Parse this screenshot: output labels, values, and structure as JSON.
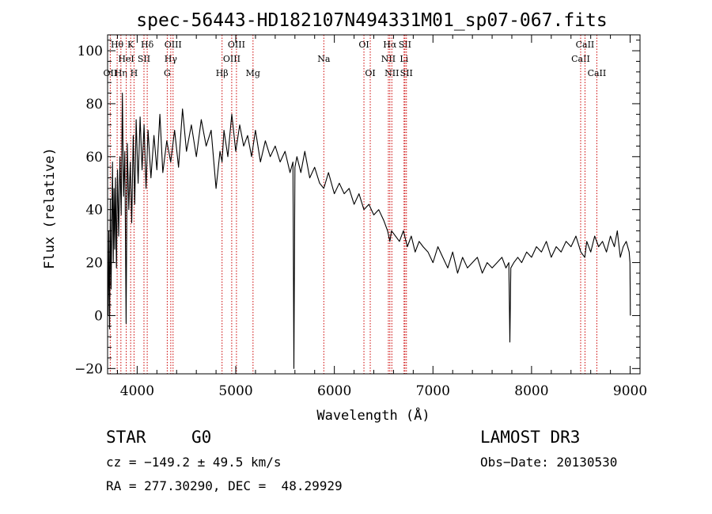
{
  "chart_data": {
    "type": "line",
    "title": "spec-56443-HD182107N494331M01_sp07-067.fits",
    "xlabel": "Wavelength (Å)",
    "ylabel": "Flux (relative)",
    "xlim": [
      3700,
      9100
    ],
    "ylim": [
      -22,
      106
    ],
    "x_ticks": [
      4000,
      5000,
      6000,
      7000,
      8000,
      9000
    ],
    "y_ticks": [
      -20,
      0,
      20,
      40,
      60,
      80,
      100
    ],
    "series": [
      {
        "name": "spectrum",
        "x": [
          3705,
          3712,
          3720,
          3728,
          3735,
          3742,
          3750,
          3758,
          3765,
          3772,
          3780,
          3790,
          3800,
          3812,
          3825,
          3838,
          3850,
          3862,
          3875,
          3888,
          3900,
          3915,
          3930,
          3945,
          3960,
          3975,
          3990,
          4010,
          4030,
          4050,
          4070,
          4090,
          4110,
          4140,
          4170,
          4200,
          4230,
          4260,
          4300,
          4340,
          4380,
          4420,
          4460,
          4500,
          4550,
          4600,
          4650,
          4700,
          4750,
          4800,
          4840,
          4861,
          4880,
          4920,
          4960,
          5000,
          5040,
          5080,
          5120,
          5160,
          5200,
          5250,
          5300,
          5350,
          5400,
          5450,
          5500,
          5550,
          5580,
          5590,
          5600,
          5620,
          5660,
          5700,
          5750,
          5800,
          5850,
          5893,
          5940,
          6000,
          6050,
          6100,
          6150,
          6200,
          6250,
          6300,
          6350,
          6400,
          6450,
          6500,
          6540,
          6563,
          6580,
          6620,
          6660,
          6700,
          6740,
          6780,
          6820,
          6860,
          6900,
          6950,
          7000,
          7050,
          7100,
          7150,
          7200,
          7250,
          7300,
          7350,
          7400,
          7450,
          7500,
          7550,
          7600,
          7650,
          7700,
          7740,
          7770,
          7780,
          7790,
          7820,
          7860,
          7900,
          7950,
          8000,
          8050,
          8100,
          8150,
          8200,
          8250,
          8300,
          8350,
          8400,
          8450,
          8500,
          8540,
          8560,
          8600,
          8640,
          8680,
          8720,
          8760,
          8800,
          8840,
          8870,
          8900,
          8930,
          8960,
          8990,
          8998,
          9002
        ],
        "y": [
          0,
          32,
          -5,
          44,
          10,
          30,
          58,
          20,
          48,
          25,
          52,
          18,
          55,
          30,
          60,
          38,
          84,
          45,
          62,
          -3,
          65,
          40,
          58,
          35,
          68,
          42,
          74,
          50,
          75,
          55,
          72,
          48,
          70,
          52,
          68,
          55,
          76,
          54,
          66,
          58,
          70,
          56,
          78,
          62,
          72,
          60,
          74,
          64,
          70,
          48,
          62,
          58,
          70,
          60,
          76,
          62,
          72,
          64,
          68,
          60,
          70,
          58,
          66,
          60,
          64,
          58,
          62,
          54,
          58,
          -20,
          56,
          60,
          54,
          62,
          52,
          56,
          50,
          48,
          54,
          46,
          50,
          46,
          48,
          42,
          46,
          40,
          42,
          38,
          40,
          36,
          32,
          28,
          32,
          30,
          28,
          32,
          26,
          30,
          24,
          28,
          26,
          24,
          20,
          26,
          22,
          18,
          24,
          16,
          22,
          18,
          20,
          22,
          16,
          20,
          18,
          20,
          22,
          18,
          20,
          -10,
          18,
          20,
          22,
          20,
          24,
          22,
          26,
          24,
          28,
          22,
          26,
          24,
          28,
          26,
          30,
          24,
          22,
          28,
          24,
          30,
          26,
          28,
          24,
          30,
          26,
          32,
          22,
          26,
          28,
          24,
          20,
          0
        ]
      }
    ],
    "spectral_lines": [
      {
        "label": "OII",
        "wave": 3727,
        "row": 3
      },
      {
        "label": "Hθ",
        "wave": 3797,
        "row": 1
      },
      {
        "label": "Hη",
        "wave": 3835,
        "row": 3
      },
      {
        "label": "HeI",
        "wave": 3889,
        "row": 2
      },
      {
        "label": "K",
        "wave": 3934,
        "row": 1
      },
      {
        "label": "H",
        "wave": 3968,
        "row": 3
      },
      {
        "label": "SII",
        "wave": 4069,
        "row": 2
      },
      {
        "label": "Hδ",
        "wave": 4102,
        "row": 1
      },
      {
        "label": "G",
        "wave": 4305,
        "row": 3
      },
      {
        "label": "Hγ",
        "wave": 4341,
        "row": 2
      },
      {
        "label": "OIII",
        "wave": 4364,
        "row": 1
      },
      {
        "label": "Hβ",
        "wave": 4861,
        "row": 3
      },
      {
        "label": "OIII",
        "wave": 4959,
        "row": 2
      },
      {
        "label": "OIII",
        "wave": 5007,
        "row": 1
      },
      {
        "label": "Mg",
        "wave": 5175,
        "row": 3
      },
      {
        "label": "Na",
        "wave": 5893,
        "row": 2
      },
      {
        "label": "OI",
        "wave": 6300,
        "row": 1
      },
      {
        "label": "OI",
        "wave": 6364,
        "row": 3
      },
      {
        "label": "NII",
        "wave": 6548,
        "row": 2
      },
      {
        "label": "Hα",
        "wave": 6563,
        "row": 1
      },
      {
        "label": "NII",
        "wave": 6583,
        "row": 3
      },
      {
        "label": "Li",
        "wave": 6707,
        "row": 2
      },
      {
        "label": "SII",
        "wave": 6716,
        "row": 1
      },
      {
        "label": "SII",
        "wave": 6731,
        "row": 3
      },
      {
        "label": "CaII",
        "wave": 8498,
        "row": 2
      },
      {
        "label": "CaII",
        "wave": 8542,
        "row": 1
      },
      {
        "label": "CaII",
        "wave": 8662,
        "row": 3
      }
    ]
  },
  "info": {
    "object_class": "STAR",
    "subclass": "G0",
    "survey": "LAMOST DR3",
    "cz": "cz = −149.2 ± 49.5 km/s",
    "obs_date": "Obs−Date: 20130530",
    "coords": "RA = 277.30290, DEC =  48.29929"
  },
  "colors": {
    "line": "#000000",
    "marker": "#cc0000",
    "axis": "#000000"
  }
}
